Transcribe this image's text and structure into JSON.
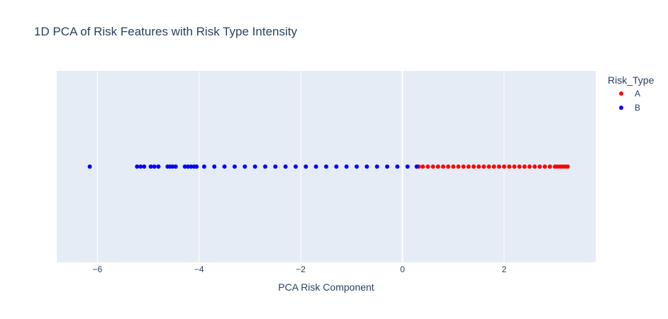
{
  "chart_data": {
    "type": "scatter",
    "title": "1D PCA of Risk Features with Risk Type Intensity",
    "xlabel": "PCA Risk Component",
    "ylabel": "",
    "xlim": [
      -6.8,
      3.8
    ],
    "xticks": [
      -6,
      -4,
      -2,
      0,
      2
    ],
    "xtick_labels": [
      "−6",
      "−4",
      "−2",
      "0",
      "2"
    ],
    "grid": true,
    "legend": {
      "title": "Risk_Type",
      "position": "top-right outside",
      "entries": [
        "A",
        "B"
      ]
    },
    "series": [
      {
        "name": "A",
        "color": "#ff0000",
        "x": [
          0.32,
          0.4,
          0.5,
          0.6,
          0.7,
          0.8,
          0.9,
          1.0,
          1.1,
          1.2,
          1.3,
          1.4,
          1.5,
          1.6,
          1.7,
          1.8,
          1.9,
          2.0,
          2.1,
          2.2,
          2.3,
          2.4,
          2.5,
          2.6,
          2.7,
          2.8,
          2.9,
          3.0,
          3.05,
          3.1,
          3.15,
          3.2,
          3.25
        ],
        "y": [
          0,
          0,
          0,
          0,
          0,
          0,
          0,
          0,
          0,
          0,
          0,
          0,
          0,
          0,
          0,
          0,
          0,
          0,
          0,
          0,
          0,
          0,
          0,
          0,
          0,
          0,
          0,
          0,
          0,
          0,
          0,
          0,
          0
        ]
      },
      {
        "name": "B",
        "color": "#0000ff",
        "x": [
          -6.15,
          -5.22,
          -5.15,
          -5.08,
          -4.95,
          -4.88,
          -4.8,
          -4.62,
          -4.57,
          -4.52,
          -4.46,
          -4.28,
          -4.22,
          -4.16,
          -4.1,
          -4.05,
          -3.9,
          -3.7,
          -3.5,
          -3.3,
          -3.1,
          -2.9,
          -2.7,
          -2.5,
          -2.3,
          -2.1,
          -1.9,
          -1.7,
          -1.5,
          -1.3,
          -1.1,
          -0.9,
          -0.7,
          -0.5,
          -0.3,
          -0.1,
          0.1,
          0.28
        ],
        "y": [
          0,
          0,
          0,
          0,
          0,
          0,
          0,
          0,
          0,
          0,
          0,
          0,
          0,
          0,
          0,
          0,
          0,
          0,
          0,
          0,
          0,
          0,
          0,
          0,
          0,
          0,
          0,
          0,
          0,
          0,
          0,
          0,
          0,
          0,
          0,
          0,
          0,
          0
        ]
      }
    ]
  }
}
